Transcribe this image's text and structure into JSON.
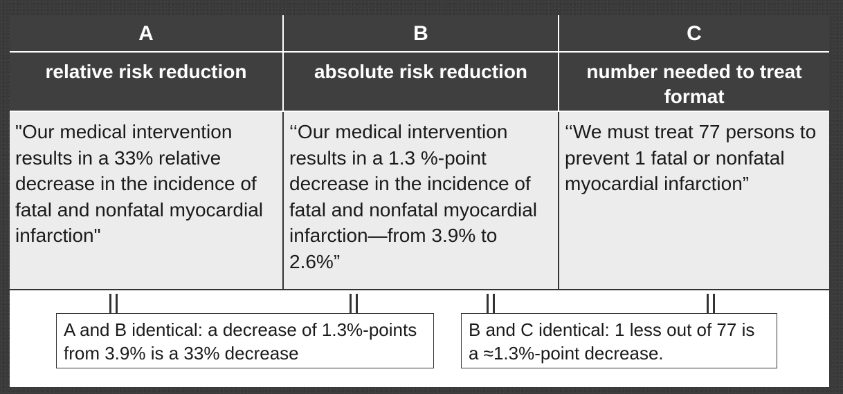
{
  "columns": [
    {
      "letter": "A",
      "title": "relative risk reduction",
      "text": "\"Our medical intervention results in a 33% relative decrease in the incidence of fatal and nonfatal myocardial infarction\""
    },
    {
      "letter": "B",
      "title": "absolute risk reduction",
      "text": "‘‘Our medical intervention results in a 1.3 %-point decrease in the incidence of fatal and nonfatal myocardial infarction—from 3.9% to 2.6%”"
    },
    {
      "letter": "C",
      "title": "number needed to treat format",
      "text": "‘‘We must treat 77 persons to prevent 1 fatal or nonfatal myocardial infarction”"
    }
  ],
  "notes": [
    "A and B identical: a decrease of 1.3%-points from 3.9% is a 33% decrease",
    "B and C identical: 1 less out of 77 is a ≈1.3%-point decrease."
  ]
}
